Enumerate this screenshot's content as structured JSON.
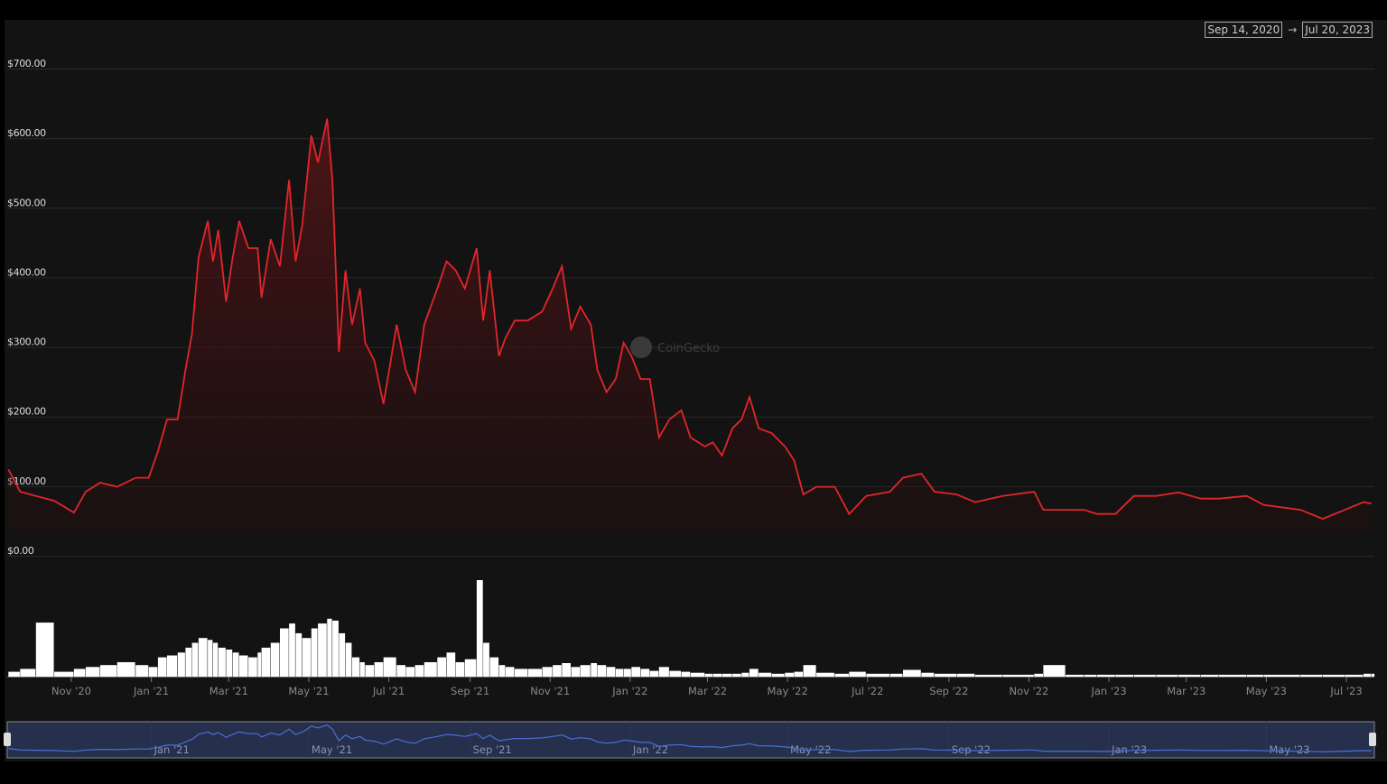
{
  "date_range": {
    "from": "Sep 14, 2020",
    "arrow": "→",
    "to": "Jul 20, 2023"
  },
  "watermark": "CoinGecko",
  "colors": {
    "price_line": "#e0262b",
    "volume": "#ffffff",
    "navigator_line": "#4a6fcf",
    "navigator_bg": "#26304d",
    "background": "#131313"
  },
  "chart_data": {
    "type": "line",
    "ylim": [
      0,
      700
    ],
    "y_ticks": [
      "$0.00",
      "$100.00",
      "$200.00",
      "$300.00",
      "$400.00",
      "$500.00",
      "$600.00",
      "$700.00"
    ],
    "x_ticks": [
      {
        "label": "Nov '20",
        "date": "2020-11-01"
      },
      {
        "label": "Jan '21",
        "date": "2021-01-01"
      },
      {
        "label": "Mar '21",
        "date": "2021-03-01"
      },
      {
        "label": "May '21",
        "date": "2021-05-01"
      },
      {
        "label": "Jul '21",
        "date": "2021-07-01"
      },
      {
        "label": "Sep '21",
        "date": "2021-09-01"
      },
      {
        "label": "Nov '21",
        "date": "2021-11-01"
      },
      {
        "label": "Jan '22",
        "date": "2022-01-01"
      },
      {
        "label": "Mar '22",
        "date": "2022-03-01"
      },
      {
        "label": "May '22",
        "date": "2022-05-01"
      },
      {
        "label": "Jul '22",
        "date": "2022-07-01"
      },
      {
        "label": "Sep '22",
        "date": "2022-09-01"
      },
      {
        "label": "Nov '22",
        "date": "2022-11-01"
      },
      {
        "label": "Jan '23",
        "date": "2023-01-01"
      },
      {
        "label": "Mar '23",
        "date": "2023-03-01"
      },
      {
        "label": "May '23",
        "date": "2023-05-01"
      },
      {
        "label": "Jul '23",
        "date": "2023-07-01"
      }
    ],
    "navigator_ticks": [
      {
        "label": "Jan '21",
        "date": "2021-01-01"
      },
      {
        "label": "May '21",
        "date": "2021-05-01"
      },
      {
        "label": "Sep '21",
        "date": "2021-09-01"
      },
      {
        "label": "Jan '22",
        "date": "2022-01-01"
      },
      {
        "label": "May '22",
        "date": "2022-05-01"
      },
      {
        "label": "Sep '22",
        "date": "2022-09-01"
      },
      {
        "label": "Jan '23",
        "date": "2023-01-01"
      },
      {
        "label": "May '23",
        "date": "2023-05-01"
      }
    ],
    "series": [
      {
        "fields": [
          "date",
          "price_usd",
          "volume_relative"
        ],
        "points": [
          [
            "2020-09-14",
            124,
            5
          ],
          [
            "2020-09-23",
            92,
            8
          ],
          [
            "2020-10-05",
            86,
            56
          ],
          [
            "2020-10-19",
            79,
            5
          ],
          [
            "2020-11-03",
            62,
            8
          ],
          [
            "2020-11-12",
            92,
            10
          ],
          [
            "2020-11-23",
            105,
            12
          ],
          [
            "2020-12-06",
            99,
            15
          ],
          [
            "2020-12-20",
            112,
            12
          ],
          [
            "2020-12-30",
            112,
            10
          ],
          [
            "2021-01-06",
            150,
            20
          ],
          [
            "2021-01-13",
            196,
            22
          ],
          [
            "2021-01-21",
            196,
            25
          ],
          [
            "2021-01-27",
            267,
            30
          ],
          [
            "2021-02-01",
            319,
            35
          ],
          [
            "2021-02-06",
            429,
            40
          ],
          [
            "2021-02-13",
            481,
            38
          ],
          [
            "2021-02-17",
            423,
            35
          ],
          [
            "2021-02-21",
            468,
            30
          ],
          [
            "2021-02-27",
            365,
            28
          ],
          [
            "2021-03-04",
            429,
            25
          ],
          [
            "2021-03-09",
            481,
            22
          ],
          [
            "2021-03-16",
            442,
            20
          ],
          [
            "2021-03-23",
            442,
            25
          ],
          [
            "2021-03-26",
            371,
            30
          ],
          [
            "2021-04-02",
            455,
            35
          ],
          [
            "2021-04-09",
            416,
            50
          ],
          [
            "2021-04-16",
            540,
            55
          ],
          [
            "2021-04-21",
            423,
            45
          ],
          [
            "2021-04-26",
            475,
            40
          ],
          [
            "2021-05-03",
            604,
            50
          ],
          [
            "2021-05-08",
            565,
            55
          ],
          [
            "2021-05-15",
            628,
            60
          ],
          [
            "2021-05-19",
            540,
            58
          ],
          [
            "2021-05-24",
            293,
            45
          ],
          [
            "2021-05-29",
            410,
            35
          ],
          [
            "2021-06-03",
            332,
            20
          ],
          [
            "2021-06-09",
            384,
            15
          ],
          [
            "2021-06-13",
            306,
            12
          ],
          [
            "2021-06-20",
            280,
            15
          ],
          [
            "2021-06-27",
            218,
            20
          ],
          [
            "2021-07-07",
            332,
            12
          ],
          [
            "2021-07-14",
            267,
            10
          ],
          [
            "2021-07-21",
            235,
            12
          ],
          [
            "2021-07-28",
            332,
            15
          ],
          [
            "2021-08-07",
            384,
            20
          ],
          [
            "2021-08-14",
            423,
            25
          ],
          [
            "2021-08-21",
            410,
            15
          ],
          [
            "2021-08-28",
            384,
            18
          ],
          [
            "2021-09-06",
            442,
            100
          ],
          [
            "2021-09-11",
            338,
            35
          ],
          [
            "2021-09-16",
            410,
            20
          ],
          [
            "2021-09-23",
            287,
            12
          ],
          [
            "2021-09-28",
            313,
            10
          ],
          [
            "2021-10-05",
            338,
            8
          ],
          [
            "2021-10-15",
            338,
            8
          ],
          [
            "2021-10-26",
            351,
            10
          ],
          [
            "2021-11-03",
            384,
            12
          ],
          [
            "2021-11-10",
            416,
            14
          ],
          [
            "2021-11-17",
            326,
            10
          ],
          [
            "2021-11-24",
            358,
            12
          ],
          [
            "2021-12-02",
            332,
            14
          ],
          [
            "2021-12-07",
            267,
            12
          ],
          [
            "2021-12-14",
            235,
            10
          ],
          [
            "2021-12-21",
            254,
            8
          ],
          [
            "2021-12-27",
            306,
            8
          ],
          [
            "2022-01-02",
            287,
            10
          ],
          [
            "2022-01-09",
            254,
            8
          ],
          [
            "2022-01-16",
            254,
            6
          ],
          [
            "2022-01-23",
            170,
            10
          ],
          [
            "2022-01-31",
            196,
            6
          ],
          [
            "2022-02-09",
            209,
            5
          ],
          [
            "2022-02-16",
            170,
            4
          ],
          [
            "2022-02-27",
            157,
            3
          ],
          [
            "2022-03-05",
            163,
            3
          ],
          [
            "2022-03-12",
            144,
            3
          ],
          [
            "2022-03-20",
            183,
            3
          ],
          [
            "2022-03-27",
            196,
            4
          ],
          [
            "2022-04-02",
            228,
            8
          ],
          [
            "2022-04-09",
            183,
            4
          ],
          [
            "2022-04-19",
            176,
            3
          ],
          [
            "2022-04-29",
            157,
            4
          ],
          [
            "2022-05-06",
            137,
            5
          ],
          [
            "2022-05-13",
            88,
            12
          ],
          [
            "2022-05-23",
            99,
            4
          ],
          [
            "2022-06-06",
            99,
            3
          ],
          [
            "2022-06-17",
            60,
            5
          ],
          [
            "2022-06-30",
            86,
            3
          ],
          [
            "2022-07-18",
            92,
            3
          ],
          [
            "2022-07-28",
            112,
            7
          ],
          [
            "2022-08-11",
            118,
            4
          ],
          [
            "2022-08-21",
            92,
            3
          ],
          [
            "2022-09-07",
            88,
            3
          ],
          [
            "2022-09-21",
            77,
            2
          ],
          [
            "2022-10-12",
            86,
            2
          ],
          [
            "2022-11-05",
            92,
            3
          ],
          [
            "2022-11-12",
            66,
            12
          ],
          [
            "2022-11-29",
            66,
            2
          ],
          [
            "2022-12-13",
            66,
            2
          ],
          [
            "2022-12-23",
            60,
            2
          ],
          [
            "2023-01-06",
            60,
            2
          ],
          [
            "2023-01-20",
            86,
            2
          ],
          [
            "2023-02-06",
            86,
            2
          ],
          [
            "2023-02-23",
            91,
            2
          ],
          [
            "2023-03-12",
            82,
            2
          ],
          [
            "2023-03-26",
            82,
            2
          ],
          [
            "2023-04-16",
            86,
            2
          ],
          [
            "2023-04-29",
            73,
            2
          ],
          [
            "2023-05-27",
            66,
            2
          ],
          [
            "2023-06-13",
            53,
            2
          ],
          [
            "2023-06-30",
            66,
            2
          ],
          [
            "2023-07-14",
            77,
            3
          ],
          [
            "2023-07-20",
            75,
            3
          ]
        ]
      }
    ]
  }
}
